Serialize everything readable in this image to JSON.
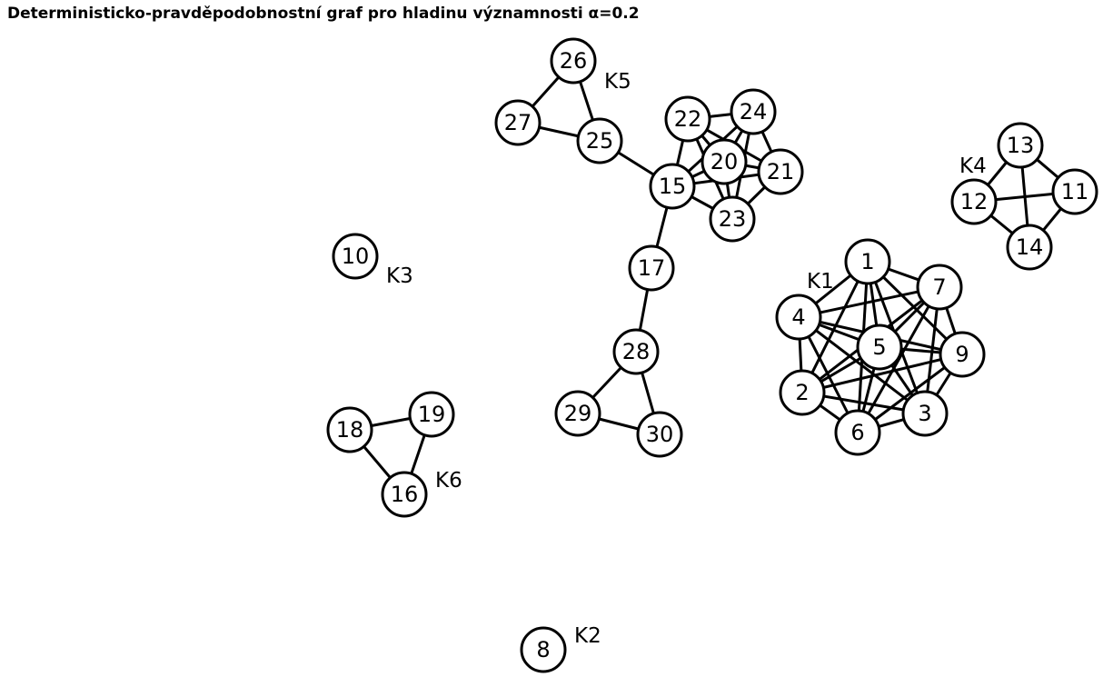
{
  "title": "Deterministicko-pravděpodobnostní graf pro hladinu významnosti α=0.2",
  "colors": {
    "background": "#ffffff",
    "stroke": "#000000",
    "node_fill": "#ffffff"
  },
  "nodes": [
    "1",
    "2",
    "3",
    "4",
    "5",
    "6",
    "7",
    "8",
    "9",
    "10",
    "11",
    "12",
    "13",
    "14",
    "15",
    "16",
    "17",
    "18",
    "19",
    "20",
    "21",
    "22",
    "23",
    "24",
    "25",
    "26",
    "27",
    "28",
    "29",
    "30"
  ],
  "edges": [
    [
      "1",
      "7"
    ],
    [
      "1",
      "4"
    ],
    [
      "1",
      "5"
    ],
    [
      "1",
      "2"
    ],
    [
      "1",
      "6"
    ],
    [
      "1",
      "3"
    ],
    [
      "1",
      "9"
    ],
    [
      "4",
      "7"
    ],
    [
      "4",
      "5"
    ],
    [
      "4",
      "2"
    ],
    [
      "4",
      "6"
    ],
    [
      "4",
      "3"
    ],
    [
      "4",
      "9"
    ],
    [
      "7",
      "5"
    ],
    [
      "7",
      "9"
    ],
    [
      "7",
      "2"
    ],
    [
      "7",
      "6"
    ],
    [
      "7",
      "3"
    ],
    [
      "5",
      "9"
    ],
    [
      "5",
      "2"
    ],
    [
      "5",
      "6"
    ],
    [
      "5",
      "3"
    ],
    [
      "9",
      "2"
    ],
    [
      "9",
      "3"
    ],
    [
      "9",
      "6"
    ],
    [
      "2",
      "6"
    ],
    [
      "2",
      "3"
    ],
    [
      "6",
      "3"
    ],
    [
      "13",
      "12"
    ],
    [
      "13",
      "11"
    ],
    [
      "13",
      "14"
    ],
    [
      "12",
      "11"
    ],
    [
      "12",
      "14"
    ],
    [
      "11",
      "14"
    ],
    [
      "22",
      "24"
    ],
    [
      "22",
      "20"
    ],
    [
      "22",
      "21"
    ],
    [
      "22",
      "15"
    ],
    [
      "22",
      "23"
    ],
    [
      "24",
      "20"
    ],
    [
      "24",
      "21"
    ],
    [
      "24",
      "15"
    ],
    [
      "24",
      "23"
    ],
    [
      "20",
      "21"
    ],
    [
      "20",
      "15"
    ],
    [
      "20",
      "23"
    ],
    [
      "21",
      "15"
    ],
    [
      "21",
      "23"
    ],
    [
      "15",
      "23"
    ],
    [
      "15",
      "25"
    ],
    [
      "15",
      "17"
    ],
    [
      "17",
      "28"
    ],
    [
      "26",
      "27"
    ],
    [
      "26",
      "25"
    ],
    [
      "27",
      "25"
    ],
    [
      "28",
      "29"
    ],
    [
      "28",
      "30"
    ],
    [
      "29",
      "30"
    ],
    [
      "18",
      "19"
    ],
    [
      "18",
      "16"
    ],
    [
      "19",
      "16"
    ]
  ],
  "clusters": [
    "K1",
    "K2",
    "K3",
    "K4",
    "K5",
    "K6"
  ]
}
